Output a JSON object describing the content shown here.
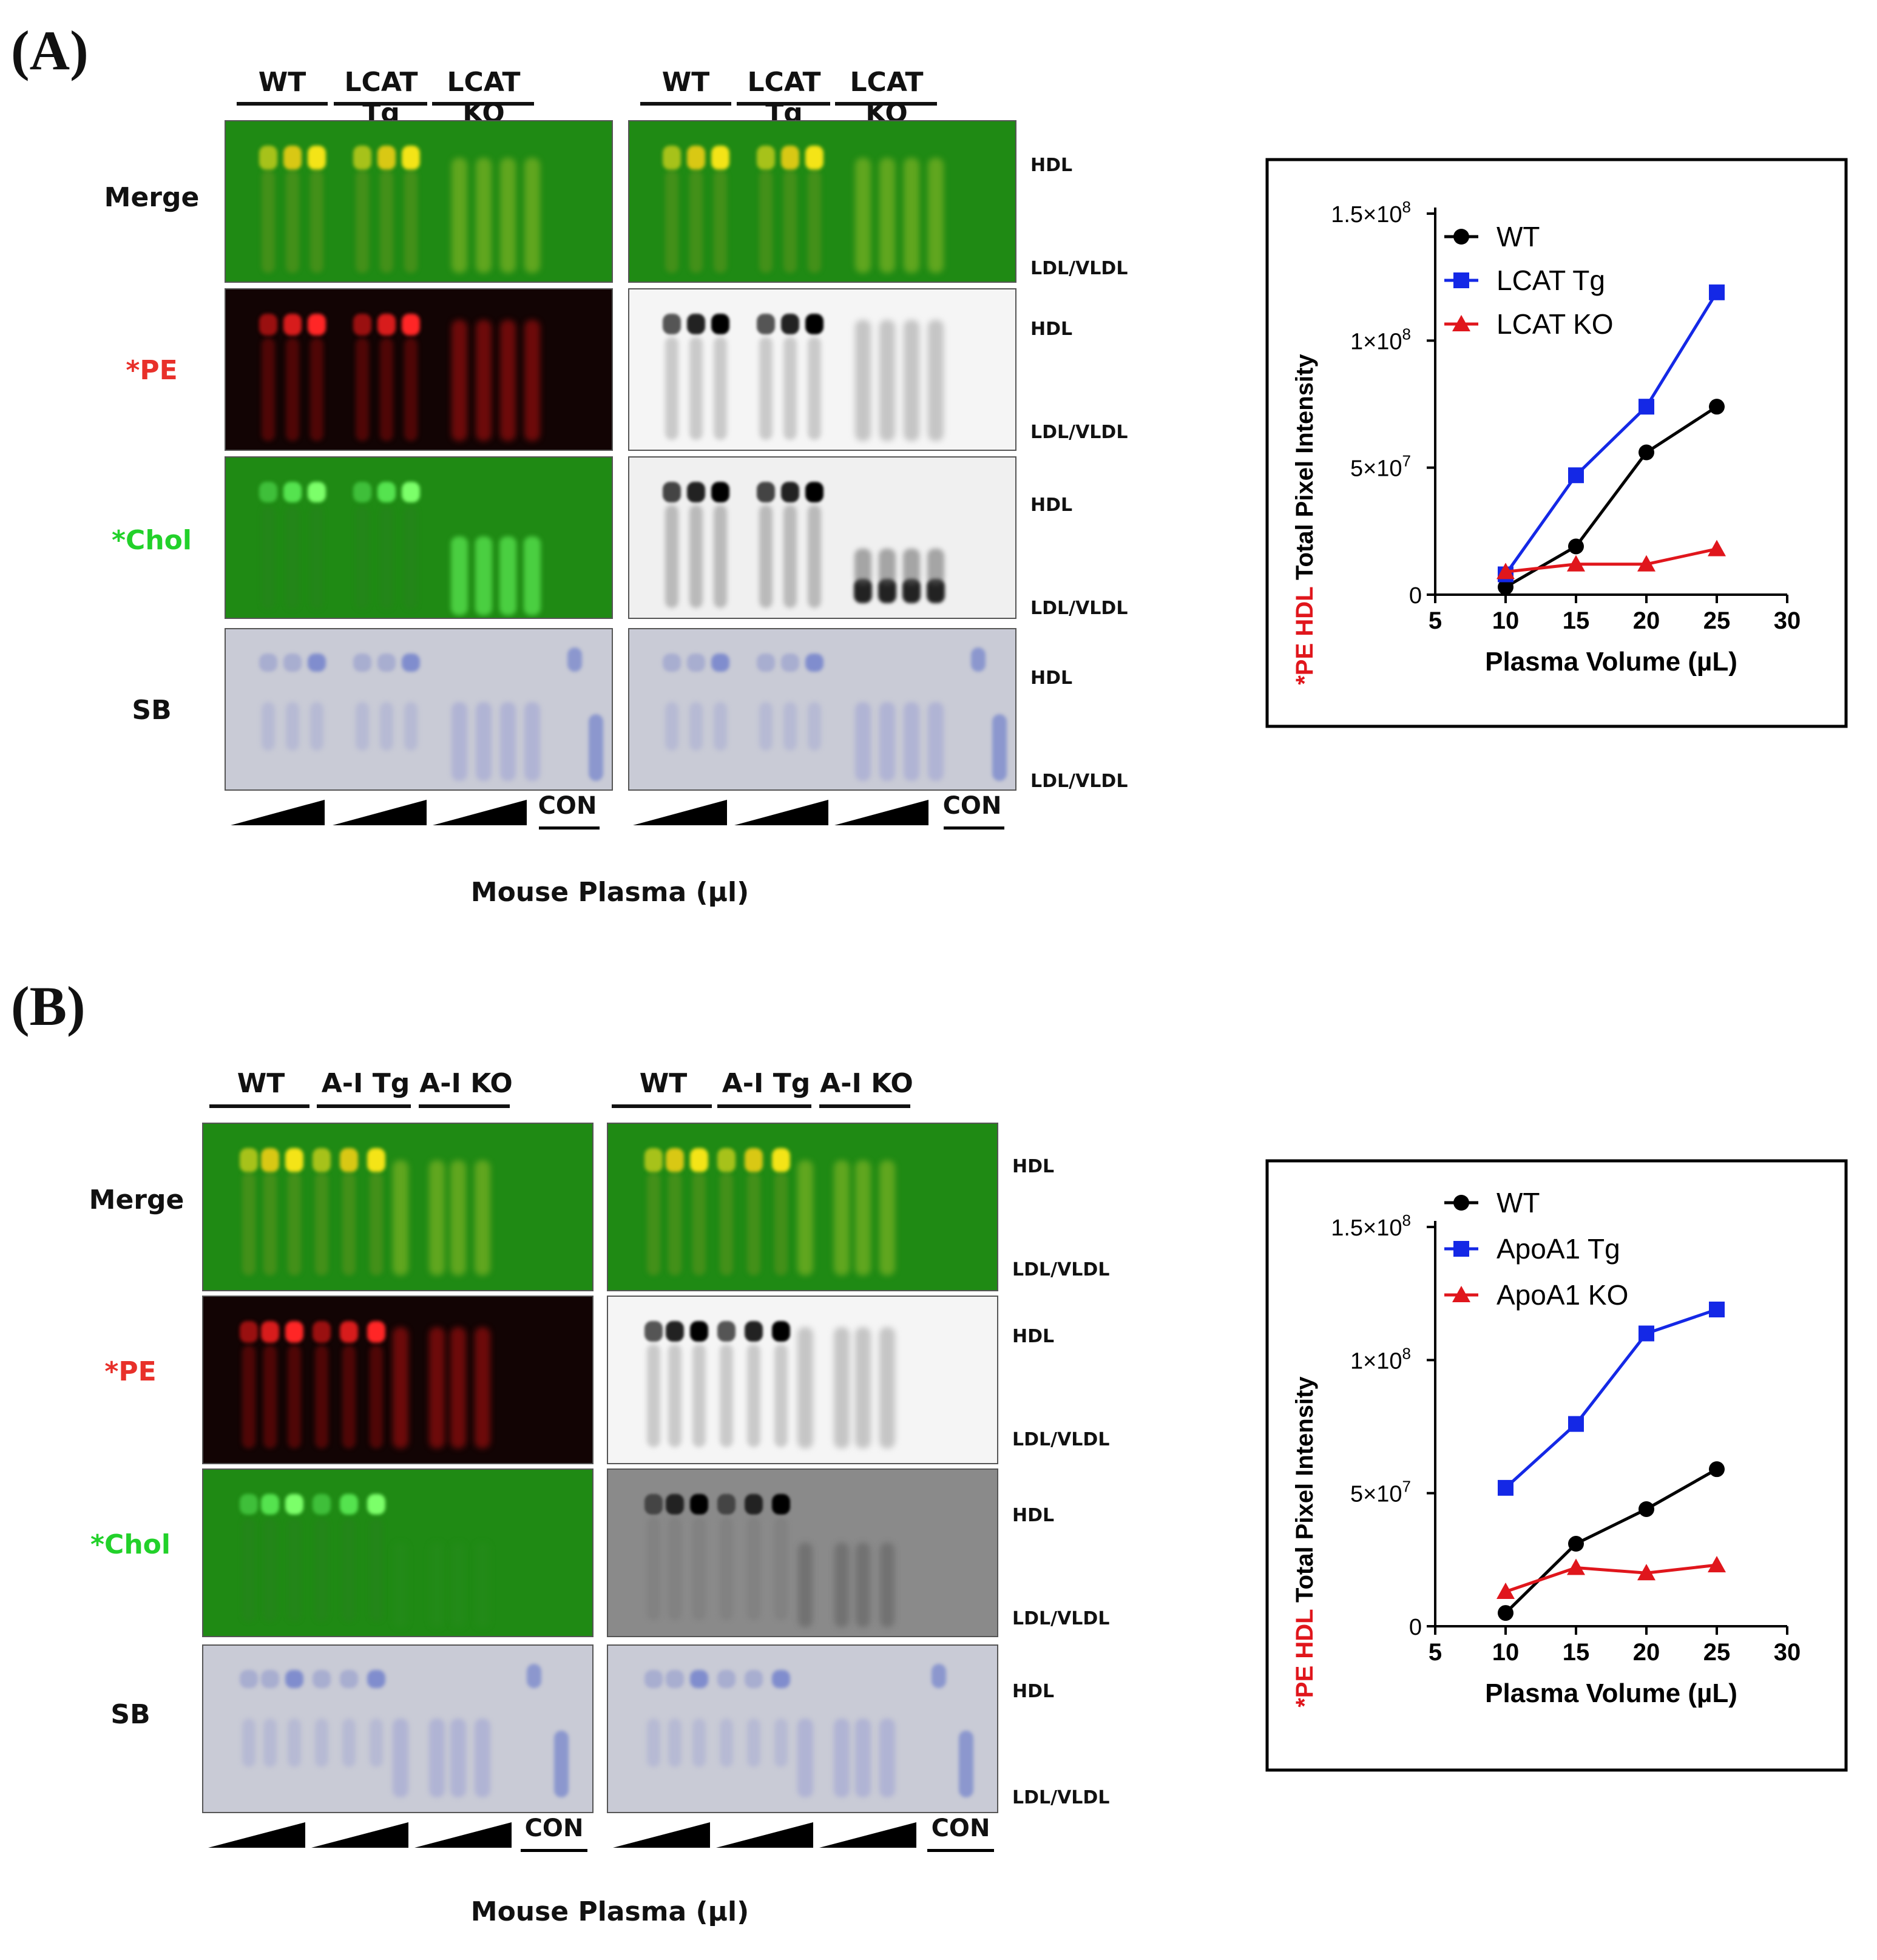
{
  "panel_a": {
    "letter": "(A)",
    "groups": [
      "WT",
      "LCAT Tg",
      "LCAT KO"
    ],
    "rows": [
      {
        "label": "Merge",
        "color": "#111111"
      },
      {
        "label": "*PE",
        "color": "#e8302a"
      },
      {
        "label": "*Chol",
        "color": "#22d12a"
      },
      {
        "label": "SB",
        "color": "#111111"
      }
    ],
    "side": {
      "hdl": "HDL",
      "ldl": "LDL/VLDL"
    },
    "con": "CON",
    "xcaption": "Mouse Plasma (µl)"
  },
  "panel_b": {
    "letter": "(B)",
    "groups": [
      "WT",
      "A-I Tg",
      "A-I KO"
    ],
    "rows": [
      {
        "label": "Merge",
        "color": "#111111"
      },
      {
        "label": "*PE",
        "color": "#e8302a"
      },
      {
        "label": "*Chol",
        "color": "#22d12a"
      },
      {
        "label": "SB",
        "color": "#111111"
      }
    ],
    "side": {
      "hdl": "HDL",
      "ldl": "LDL/VLDL"
    },
    "con": "CON",
    "xcaption": "Mouse Plasma (µl)"
  },
  "chart_data": [
    {
      "type": "line",
      "xlabel": "Plasma Volume (µL)",
      "ylabel_red": "*PE HDL",
      "ylabel_black": "Total Pixel Intensity",
      "xlim": [
        5,
        30
      ],
      "ylim": [
        0,
        150000000
      ],
      "xticks": [
        "5",
        "10",
        "15",
        "20",
        "25",
        "30"
      ],
      "yticks": [
        {
          "value": 0,
          "mant": "0",
          "exp": ""
        },
        {
          "value": 50000000,
          "mant": "5×10",
          "exp": "7"
        },
        {
          "value": 100000000,
          "mant": "1×10",
          "exp": "8"
        },
        {
          "value": 150000000,
          "mant": "1.5×10",
          "exp": "8"
        }
      ],
      "legend_position": "top-left",
      "x": [
        10,
        15,
        20,
        25
      ],
      "series": [
        {
          "name": "WT",
          "color": "#000000",
          "marker": "circle",
          "values": [
            3000000,
            19000000,
            56000000,
            74000000
          ]
        },
        {
          "name": "LCAT Tg",
          "color": "#1428e6",
          "marker": "square",
          "values": [
            8000000,
            47000000,
            74000000,
            119000000
          ]
        },
        {
          "name": "LCAT KO",
          "color": "#e0161c",
          "marker": "triangle",
          "values": [
            9000000,
            12000000,
            12000000,
            18000000
          ]
        }
      ]
    },
    {
      "type": "line",
      "xlabel": "Plasma Volume (µL)",
      "ylabel_red": "*PE HDL",
      "ylabel_black": "Total Pixel Intensity",
      "xlim": [
        5,
        30
      ],
      "ylim": [
        0,
        150000000
      ],
      "xticks": [
        "5",
        "10",
        "15",
        "20",
        "25",
        "30"
      ],
      "yticks": [
        {
          "value": 0,
          "mant": "0",
          "exp": ""
        },
        {
          "value": 50000000,
          "mant": "5×10",
          "exp": "7"
        },
        {
          "value": 100000000,
          "mant": "1×10",
          "exp": "8"
        },
        {
          "value": 150000000,
          "mant": "1.5×10",
          "exp": "8"
        }
      ],
      "legend_position": "top-left",
      "x": [
        10,
        15,
        20,
        25
      ],
      "series": [
        {
          "name": "WT",
          "color": "#000000",
          "marker": "circle",
          "values": [
            5000000,
            31000000,
            44000000,
            59000000
          ]
        },
        {
          "name": "ApoA1 Tg",
          "color": "#1428e6",
          "marker": "square",
          "values": [
            52000000,
            76000000,
            110000000,
            119000000
          ]
        },
        {
          "name": "ApoA1 KO",
          "color": "#e0161c",
          "marker": "triangle",
          "values": [
            13000000,
            22000000,
            20000000,
            23000000
          ]
        }
      ]
    }
  ]
}
